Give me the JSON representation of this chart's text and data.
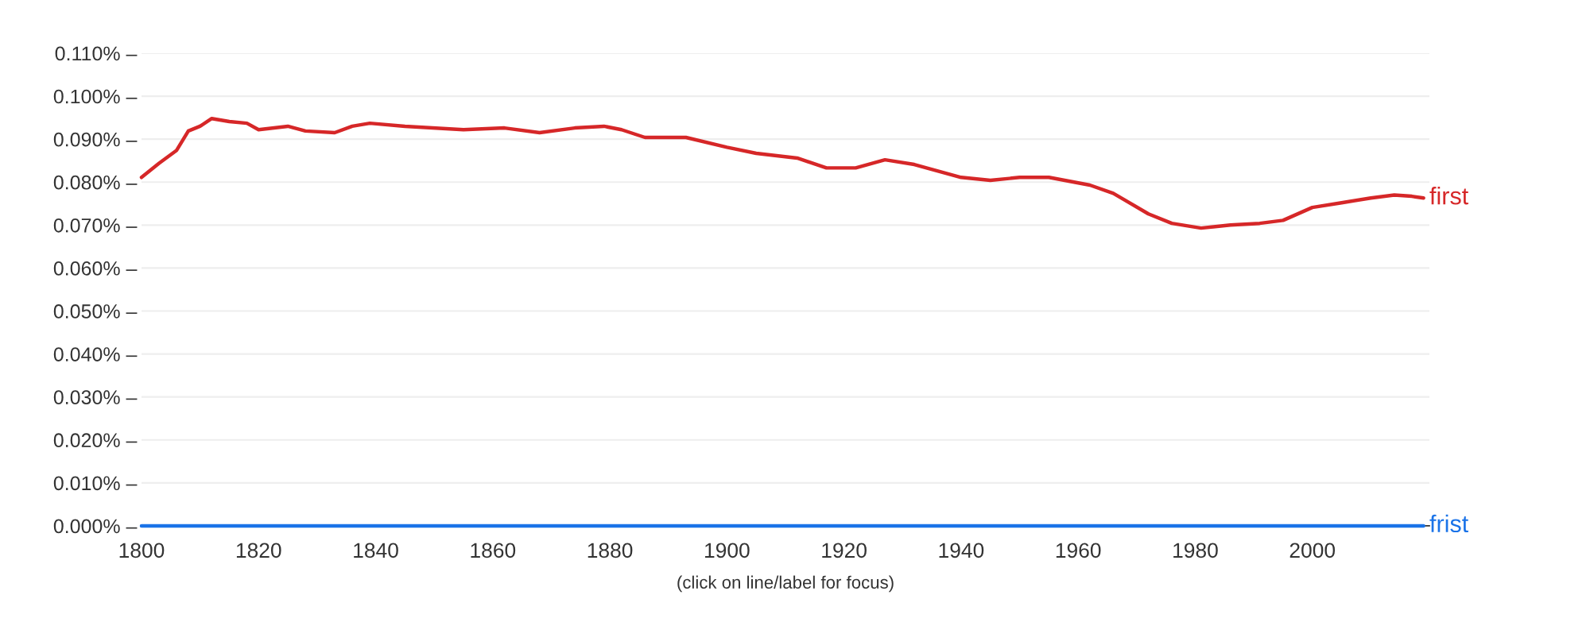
{
  "chart_data": {
    "type": "line",
    "x": [
      1800,
      1803,
      1806,
      1808,
      1810,
      1812,
      1815,
      1818,
      1820,
      1825,
      1828,
      1833,
      1836,
      1839,
      1845,
      1855,
      1862,
      1868,
      1874,
      1879,
      1882,
      1886,
      1893,
      1900,
      1905,
      1912,
      1917,
      1922,
      1927,
      1932,
      1940,
      1945,
      1950,
      1955,
      1962,
      1966,
      1972,
      1976,
      1981,
      1986,
      1991,
      1995,
      2000,
      2005,
      2010,
      2014,
      2017,
      2019
    ],
    "series": [
      {
        "name": "first",
        "color": "#d62728",
        "values": [
          0.0811,
          0.0844,
          0.0874,
          0.0919,
          0.093,
          0.0948,
          0.0941,
          0.0937,
          0.0922,
          0.093,
          0.0919,
          0.0915,
          0.093,
          0.0937,
          0.093,
          0.0922,
          0.0926,
          0.0915,
          0.0926,
          0.093,
          0.0922,
          0.0904,
          0.0904,
          0.0881,
          0.0867,
          0.0856,
          0.0833,
          0.0833,
          0.0852,
          0.0841,
          0.0811,
          0.0804,
          0.0811,
          0.0811,
          0.0793,
          0.0774,
          0.0726,
          0.0704,
          0.0693,
          0.07,
          0.0704,
          0.0711,
          0.0741,
          0.0752,
          0.0763,
          0.077,
          0.0767,
          0.0763
        ]
      },
      {
        "name": "frist",
        "color": "#1a73e8",
        "values": [
          0,
          0,
          0,
          0,
          0,
          0,
          0,
          0,
          0,
          0,
          0,
          0,
          0,
          0,
          0,
          0,
          0,
          0,
          0,
          0,
          0,
          0,
          0,
          0,
          0,
          0,
          0,
          0,
          0,
          0,
          0,
          0,
          0,
          0,
          0,
          0,
          0,
          0,
          0,
          0,
          0,
          0,
          0,
          0,
          0,
          0,
          0,
          0
        ]
      }
    ],
    "xlim": [
      1800,
      2020
    ],
    "xticks": [
      1800,
      1820,
      1840,
      1860,
      1880,
      1900,
      1920,
      1940,
      1960,
      1980,
      2000
    ],
    "ylim": [
      0,
      0.11
    ],
    "yticks": [
      {
        "value": 0,
        "label": "0.000% –"
      },
      {
        "value": 0.01,
        "label": "0.010% –"
      },
      {
        "value": 0.02,
        "label": "0.020% –"
      },
      {
        "value": 0.03,
        "label": "0.030% –"
      },
      {
        "value": 0.04,
        "label": "0.040% –"
      },
      {
        "value": 0.05,
        "label": "0.050% –"
      },
      {
        "value": 0.06,
        "label": "0.060% –"
      },
      {
        "value": 0.07,
        "label": "0.070% –"
      },
      {
        "value": 0.08,
        "label": "0.080% –"
      },
      {
        "value": 0.09,
        "label": "0.090% –"
      },
      {
        "value": 0.1,
        "label": "0.100% –"
      },
      {
        "value": 0.11,
        "label": "0.110% –"
      }
    ],
    "grid": "y",
    "legend": false,
    "line_style": "solid",
    "marker": "none",
    "annotations": [
      "(click on line/label for focus)"
    ]
  }
}
